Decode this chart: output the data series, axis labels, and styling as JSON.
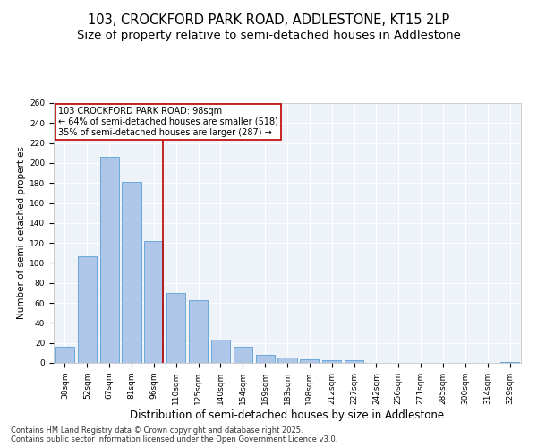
{
  "title": "103, CROCKFORD PARK ROAD, ADDLESTONE, KT15 2LP",
  "subtitle": "Size of property relative to semi-detached houses in Addlestone",
  "xlabel": "Distribution of semi-detached houses by size in Addlestone",
  "ylabel": "Number of semi-detached properties",
  "categories": [
    "38sqm",
    "52sqm",
    "67sqm",
    "81sqm",
    "96sqm",
    "110sqm",
    "125sqm",
    "140sqm",
    "154sqm",
    "169sqm",
    "183sqm",
    "198sqm",
    "212sqm",
    "227sqm",
    "242sqm",
    "256sqm",
    "271sqm",
    "285sqm",
    "300sqm",
    "314sqm",
    "329sqm"
  ],
  "values": [
    16,
    107,
    206,
    181,
    122,
    70,
    63,
    23,
    16,
    8,
    5,
    4,
    3,
    3,
    0,
    0,
    0,
    0,
    0,
    0,
    1
  ],
  "bar_color": "#aec6e8",
  "bar_edge_color": "#5a9fd4",
  "highlight_color": "#c00000",
  "highlight_bar_index": 4,
  "annotation_text": "103 CROCKFORD PARK ROAD: 98sqm\n← 64% of semi-detached houses are smaller (518)\n35% of semi-detached houses are larger (287) →",
  "ylim": [
    0,
    260
  ],
  "yticks": [
    0,
    20,
    40,
    60,
    80,
    100,
    120,
    140,
    160,
    180,
    200,
    220,
    240,
    260
  ],
  "background_color": "#eef2f9",
  "footer": "Contains HM Land Registry data © Crown copyright and database right 2025.\nContains public sector information licensed under the Open Government Licence v3.0.",
  "title_fontsize": 10.5,
  "subtitle_fontsize": 9.5,
  "xlabel_fontsize": 8.5,
  "ylabel_fontsize": 7.5,
  "tick_fontsize": 6.5,
  "annotation_fontsize": 7,
  "footer_fontsize": 6
}
